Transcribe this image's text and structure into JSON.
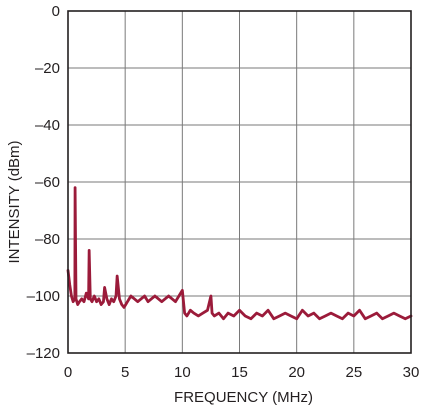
{
  "chart_data": {
    "type": "line",
    "title": "",
    "xlabel": "FREQUENCY (MHz)",
    "ylabel": "INTENSITY (dBm)",
    "xlim": [
      0,
      30
    ],
    "ylim": [
      -120,
      0
    ],
    "xticks": [
      0,
      5,
      10,
      15,
      20,
      25,
      30
    ],
    "xtick_labels": [
      "0",
      "5",
      "10",
      "15",
      "20",
      "25",
      "30"
    ],
    "yticks": [
      0,
      -20,
      -40,
      -60,
      -80,
      -100,
      -120
    ],
    "ytick_labels": [
      "0",
      "–20",
      "–40",
      "–60",
      "–80",
      "–100",
      "–120"
    ],
    "grid": true,
    "legend": "none",
    "series": [
      {
        "color": "#9b1b3a",
        "x": [
          0.0,
          0.15,
          0.3,
          0.45,
          0.6,
          0.62,
          0.7,
          0.85,
          1.0,
          1.2,
          1.4,
          1.6,
          1.8,
          1.85,
          1.95,
          2.1,
          2.3,
          2.5,
          2.7,
          2.9,
          3.1,
          3.2,
          3.4,
          3.6,
          3.8,
          4.0,
          4.2,
          4.3,
          4.5,
          4.7,
          4.9,
          5.2,
          5.5,
          5.8,
          6.1,
          6.4,
          6.7,
          7.0,
          7.3,
          7.6,
          7.9,
          8.2,
          8.5,
          8.8,
          9.1,
          9.4,
          9.7,
          10.0,
          10.2,
          10.4,
          10.7,
          11.0,
          11.4,
          11.8,
          12.2,
          12.5,
          12.6,
          12.8,
          13.2,
          13.6,
          14.0,
          14.5,
          15.0,
          15.5,
          16.0,
          16.5,
          17.0,
          17.5,
          18.0,
          18.5,
          19.0,
          19.5,
          20.0,
          20.5,
          21.0,
          21.5,
          22.0,
          22.5,
          23.0,
          23.5,
          24.0,
          24.5,
          25.0,
          25.5,
          26.0,
          26.5,
          27.0,
          27.5,
          28.0,
          28.5,
          29.0,
          29.5,
          30.0
        ],
        "y": [
          -91,
          -96,
          -100,
          -102,
          -101,
          -62,
          -101,
          -103,
          -102,
          -101,
          -102,
          -99,
          -101,
          -84,
          -101,
          -102,
          -100,
          -102,
          -101,
          -103,
          -102,
          -97,
          -101,
          -103,
          -101,
          -102,
          -100,
          -93,
          -101,
          -103,
          -104,
          -102,
          -100,
          -101,
          -102,
          -101,
          -100,
          -102,
          -101,
          -100,
          -101,
          -102,
          -101,
          -100,
          -101,
          -102,
          -100,
          -98,
          -106,
          -107,
          -105,
          -106,
          -107,
          -106,
          -105,
          -100,
          -106,
          -107,
          -106,
          -108,
          -106,
          -107,
          -105,
          -107,
          -108,
          -106,
          -107,
          -105,
          -108,
          -107,
          -106,
          -107,
          -108,
          -105,
          -107,
          -106,
          -108,
          -107,
          -106,
          -107,
          -108,
          -106,
          -107,
          -105,
          -108,
          -107,
          -106,
          -108,
          -107,
          -106,
          -107,
          -108,
          -107
        ]
      }
    ]
  }
}
